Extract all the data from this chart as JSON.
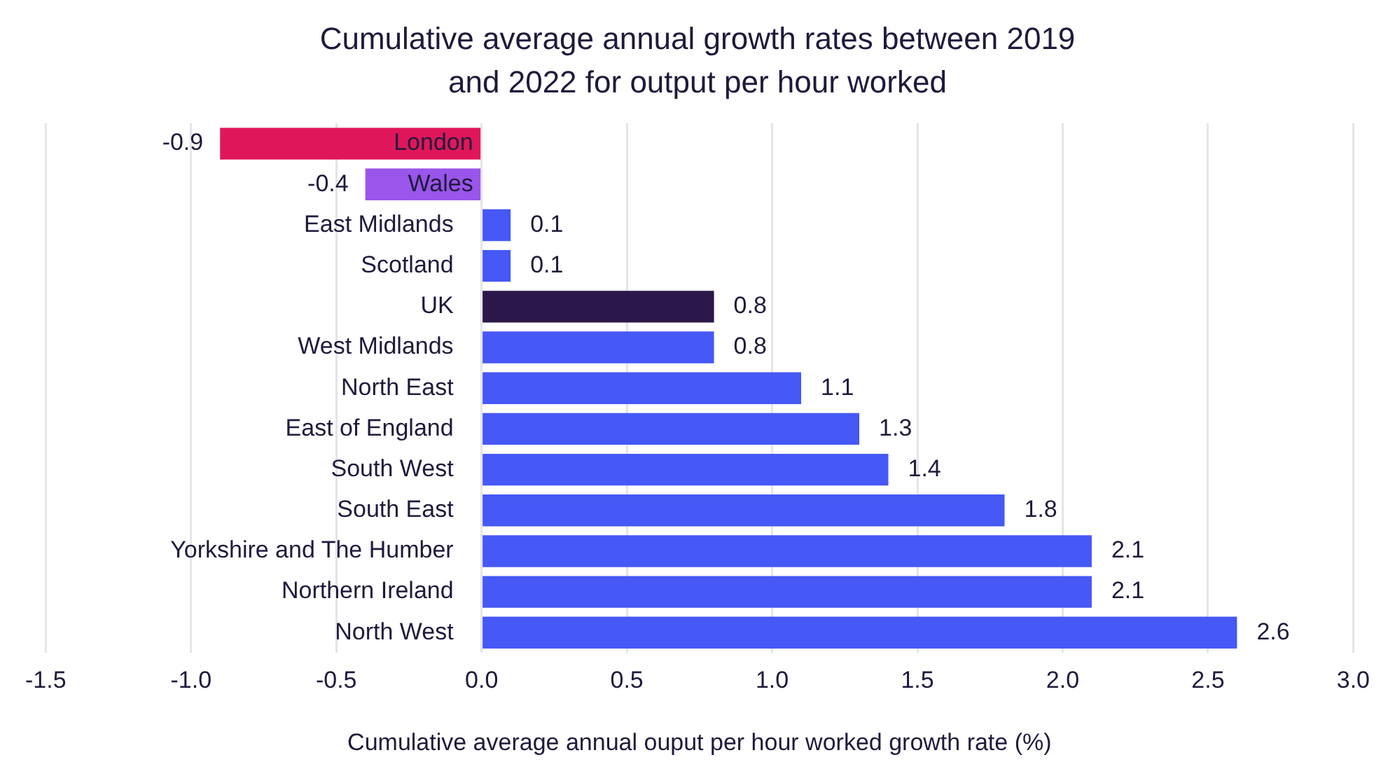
{
  "chart_data": {
    "type": "bar",
    "orientation": "horizontal",
    "title": "Cumulative average annual growth rates between 2019 and 2022 for output per hour worked",
    "xlabel": "Cumulative average annual ouput per hour worked growth rate (%)",
    "categories": [
      "London",
      "Wales",
      "East Midlands",
      "Scotland",
      "UK",
      "West Midlands",
      "North East",
      "East of England",
      "South West",
      "South East",
      "Yorkshire and The Humber",
      "Northern Ireland",
      "North West"
    ],
    "values": [
      -0.9,
      -0.4,
      0.1,
      0.1,
      0.8,
      0.8,
      1.1,
      1.3,
      1.4,
      1.8,
      2.1,
      2.1,
      2.6
    ],
    "colors": [
      "#e0165a",
      "#9a55ea",
      "#4658f5",
      "#4658f5",
      "#2b1749",
      "#4658f5",
      "#4658f5",
      "#4658f5",
      "#4658f5",
      "#4658f5",
      "#4658f5",
      "#4658f5",
      "#4658f5"
    ],
    "xlim": [
      -1.5,
      3.0
    ],
    "xticks": [
      {
        "value": -1.5,
        "label": "-1.5"
      },
      {
        "value": -1.0,
        "label": "-1.0"
      },
      {
        "value": -0.5,
        "label": "-0.5"
      },
      {
        "value": 0,
        "label": "0.0"
      },
      0.5,
      {
        "value": 1.0,
        "label": "1.0"
      },
      1.5,
      {
        "value": 2.0,
        "label": "2.0"
      },
      2.5,
      {
        "value": 3.0,
        "label": "3.0"
      }
    ],
    "grid": "x",
    "data_labels": true,
    "legend": false
  }
}
